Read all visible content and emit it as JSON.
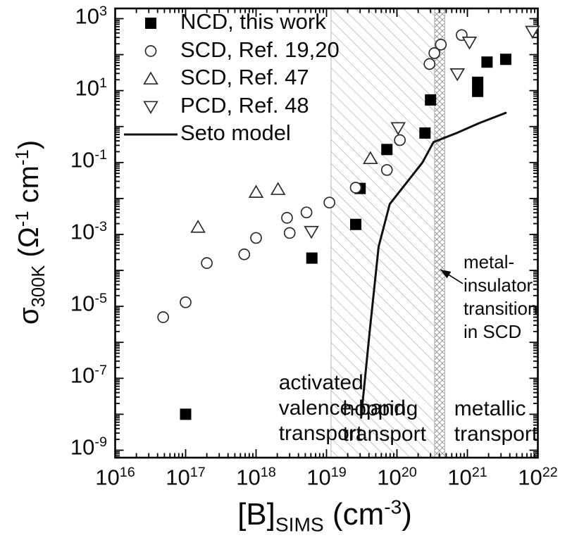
{
  "figure": {
    "background": "#ffffff",
    "frame_color": "#000000",
    "hatch_color": "#9a9a9a",
    "band_edge_color": "#b5b5b5",
    "filled_marker_color": "#000000",
    "open_marker_stroke": "#2b2b2b",
    "line_color": "#111111"
  },
  "axes": {
    "x_label": {
      "bracket": "[B]",
      "sub": "SIMS",
      "mid": " (cm",
      "sup": "-3",
      "end": ")"
    },
    "y_label": {
      "sym": "σ",
      "sub": "300K",
      "mid": " (Ω",
      "sup1": "-1",
      "mid2": " cm",
      "sup2": "-1",
      "end": ")"
    }
  },
  "chart_data": {
    "type": "scatter",
    "title": "",
    "xlabel": "[B]_SIMS (cm^-3)",
    "ylabel": "sigma_300K (ohm^-1 cm^-1)",
    "x_scale": "log",
    "y_scale": "log",
    "xlim_exponents": [
      16,
      22
    ],
    "ylim_exponents": [
      -9,
      3
    ],
    "x_tick_exponents": [
      16,
      17,
      18,
      19,
      20,
      21,
      22
    ],
    "y_labeled_exponents": [
      3,
      1,
      -1,
      -3,
      -5,
      -7,
      -9
    ],
    "tick_base": "10",
    "grid": false,
    "legend_position": "top-left-inside",
    "series": [
      {
        "name": "NCD, this work",
        "marker": "square-filled",
        "points": [
          [
            1e+17,
            1e-08
          ],
          [
            6.2e+18,
            0.00022
          ],
          [
            2.6e+19,
            0.0019
          ],
          [
            3e+19,
            0.019
          ],
          [
            7.2e+19,
            0.23
          ],
          [
            2.5e+20,
            0.66
          ],
          [
            3e+20,
            5.5
          ],
          [
            1.4e+21,
            9.5
          ],
          [
            1.4e+21,
            17
          ],
          [
            1.9e+21,
            62
          ],
          [
            3.5e+21,
            74
          ]
        ]
      },
      {
        "name": "SCD, Ref. 19,20",
        "marker": "circle-open",
        "points": [
          [
            4.8e+16,
            5e-06
          ],
          [
            1e+17,
            1.3e-05
          ],
          [
            2e+17,
            0.00016
          ],
          [
            6.8e+17,
            0.00028
          ],
          [
            1e+18,
            0.0008
          ],
          [
            3e+18,
            0.0011
          ],
          [
            2.75e+18,
            0.0029
          ],
          [
            5.2e+18,
            0.0041
          ],
          [
            1.1e+19,
            0.0077
          ],
          [
            2.6e+19,
            0.02
          ],
          [
            7.2e+19,
            0.062
          ],
          [
            1.1e+20,
            0.42
          ],
          [
            2.9e+20,
            55
          ],
          [
            3.4e+20,
            110
          ],
          [
            4.2e+20,
            190
          ],
          [
            8.3e+20,
            350
          ]
        ]
      },
      {
        "name": "SCD, Ref. 47",
        "marker": "triangle-up-open",
        "points": [
          [
            1.5e+17,
            0.0016
          ],
          [
            1e+18,
            0.015
          ],
          [
            2.05e+18,
            0.018
          ],
          [
            4.2e+19,
            0.13
          ]
        ]
      },
      {
        "name": "PCD, Ref. 48",
        "marker": "triangle-down-open",
        "points": [
          [
            6.1e+18,
            0.0012
          ],
          [
            1.04e+20,
            0.92
          ],
          [
            7.2e+20,
            29
          ],
          [
            1.07e+21,
            220
          ],
          [
            8.4e+21,
            440
          ]
        ]
      },
      {
        "name": "Seto model",
        "marker": "line",
        "points": [
          [
            3.1e+19,
            8e-09
          ],
          [
            4.1e+19,
            2e-06
          ],
          [
            5.5e+19,
            0.00046
          ],
          [
            7.9e+19,
            0.007
          ],
          [
            2.3e+20,
            0.1
          ],
          [
            3.3e+20,
            0.37
          ],
          [
            7.3e+20,
            0.68
          ],
          [
            1.46e+21,
            1.24
          ],
          [
            3.5e+21,
            2.4
          ]
        ]
      }
    ],
    "regions": [
      {
        "name": "hopping-transport-band",
        "x_from": 1.16e+19,
        "x_to": 3.42e+20,
        "pattern": "hatch"
      },
      {
        "name": "metal-insulator-transition-band",
        "x_from": 3.42e+20,
        "x_to": 4.79e+20,
        "pattern": "crosshatch"
      }
    ],
    "annotations": {
      "region_labels": [
        {
          "lines": [
            "activated",
            "valence-band",
            "transport"
          ],
          "x": 2.1e+18,
          "y_top": 1.7e-07,
          "style": "region"
        },
        {
          "lines": [
            "hopping",
            "transport"
          ],
          "x": 1.7e+19,
          "y_top": 3.2e-08,
          "style": "region"
        },
        {
          "lines": [
            "metallic",
            "transport"
          ],
          "x": 6.5e+20,
          "y_top": 3.2e-08,
          "style": "region"
        },
        {
          "lines": [
            "metal-",
            "insulator",
            "transition",
            "in SCD"
          ],
          "x": 8.8e+20,
          "y_top": 0.00035,
          "style": "mit"
        }
      ],
      "arrow": {
        "from": [
          8.6e+20,
          4.3e-05
        ],
        "to": [
          4.15e+20,
          0.000105
        ]
      }
    }
  }
}
